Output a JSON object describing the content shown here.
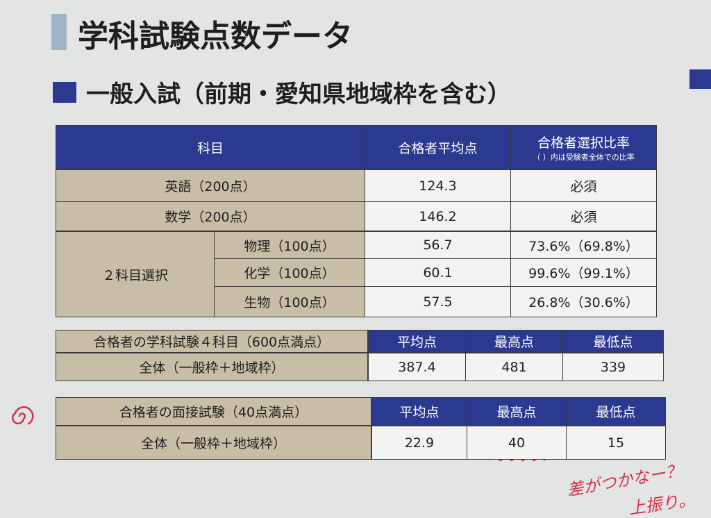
{
  "header": {
    "title": "学科試験点数データ"
  },
  "section": {
    "title": "一般入試（前期・愛知県地域枠を含む）"
  },
  "table1": {
    "headers": [
      "科目",
      "合格者平均点",
      "合格者選択比率"
    ],
    "header_note": "（ ）内は受験者全体での比率",
    "rows": [
      [
        "英語（200点）",
        "124.3",
        "必須"
      ],
      [
        "数学（200点）",
        "146.2",
        "必須"
      ]
    ],
    "elective": {
      "label": "２科目選択",
      "rows": [
        [
          "物理（100点）",
          "56.7",
          "73.6%（69.8%）"
        ],
        [
          "化学（100点）",
          "60.1",
          "99.6%（99.1%）"
        ],
        [
          "生物（100点）",
          "57.5",
          "26.8%（30.6%）"
        ]
      ]
    }
  },
  "table2": {
    "label": "合格者の学科試験４科目（600点満点）",
    "headers": [
      "平均点",
      "最高点",
      "最低点"
    ],
    "row_label": "全体（一般枠＋地域枠）",
    "values": [
      "387.4",
      "481",
      "339"
    ]
  },
  "table3": {
    "label": "合格者の面接試験（40点満点）",
    "headers": [
      "平均点",
      "最高点",
      "最低点"
    ],
    "row_label": "全体（一般枠＋地域枠）",
    "values": [
      "22.9",
      "40",
      "15"
    ]
  },
  "notes": [
    "差がつかなー？",
    "上振り。"
  ]
}
